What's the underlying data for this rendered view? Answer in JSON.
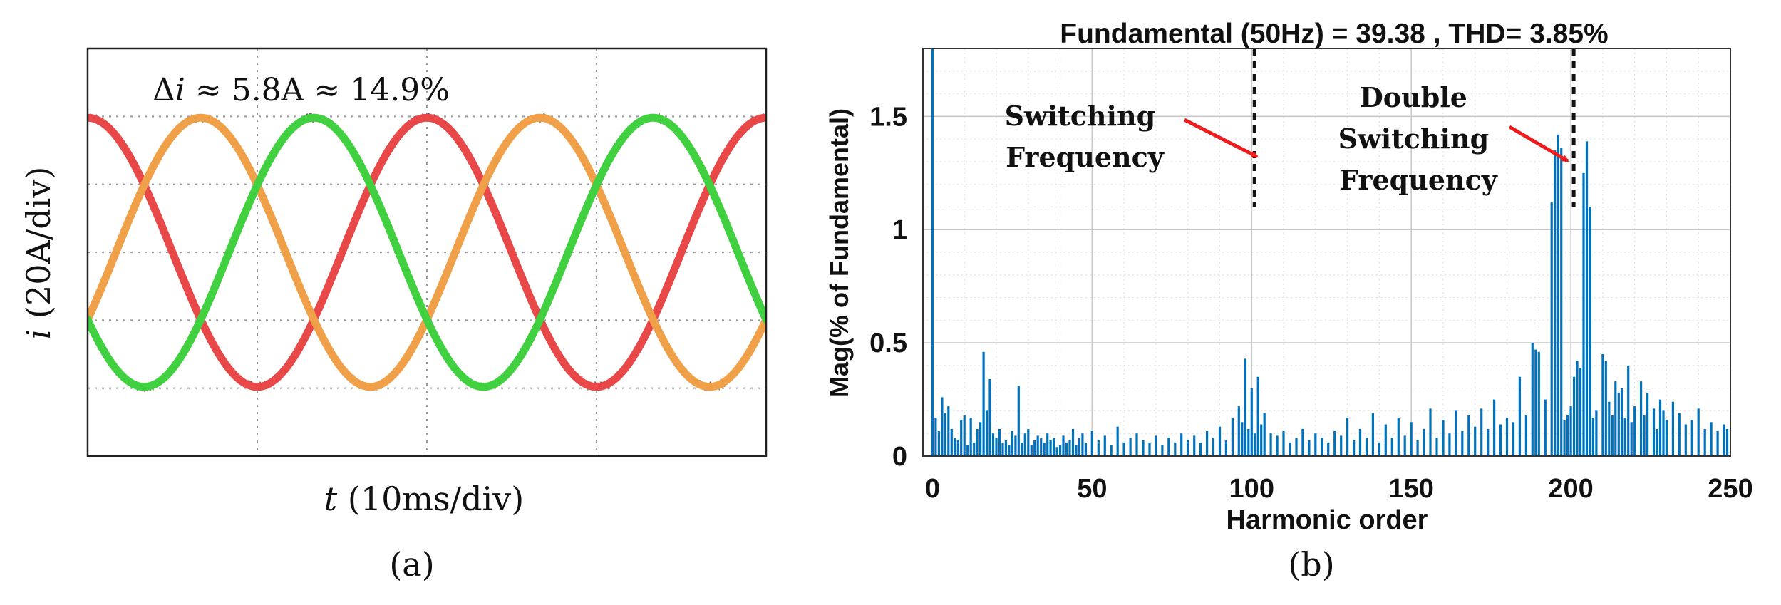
{
  "panel_a": {
    "delta_prefix": "Δ",
    "delta_var": "i",
    "delta_rest": " ≈ 5.8A ≈  14.9%",
    "ylabel_var": "i",
    "ylabel_unit": " (20A/div)",
    "xlabel_var": "t",
    "xlabel_unit": " (10ms/div)",
    "caption": "(a)",
    "colors": {
      "phase_red": "#e84848",
      "phase_orange": "#f0a048",
      "phase_green": "#40d040",
      "noise": "#3a1a10"
    }
  },
  "panel_b": {
    "title": "Fundamental (50Hz) = 39.38 , THD= 3.85%",
    "annotation_switching": [
      "Switching",
      "Frequency"
    ],
    "annotation_double": [
      "Double",
      "Switching",
      "Frequency"
    ],
    "caption": "(b)",
    "colors": {
      "bar": "#0072bd",
      "arrow": "#ee1c1c"
    }
  },
  "chart_data": [
    {
      "type": "line",
      "panel": "a",
      "series": [
        {
          "color": "#e84848",
          "amplitude_div": 2.0,
          "period_div": 2.0,
          "phase_deg": 90
        },
        {
          "color": "#f0a048",
          "amplitude_div": 2.0,
          "period_div": 2.0,
          "phase_deg": 330
        },
        {
          "color": "#40d040",
          "amplitude_div": 2.0,
          "period_div": 2.0,
          "phase_deg": 210
        }
      ],
      "ylabel": "i (20A/div)",
      "xlabel": "t (10ms/div)",
      "annotation": "Δi ≈ 5.8A ≈  14.9%",
      "grid": true
    },
    {
      "type": "bar",
      "panel": "b",
      "title": "Fundamental (50Hz) = 39.38 , THD= 3.85%",
      "xlabel": "Harmonic order",
      "ylabel": "Mag(% of Fundamental)",
      "xlim": [
        -3,
        250
      ],
      "ylim": [
        0,
        1.8
      ],
      "xticks": [
        0,
        50,
        100,
        150,
        200,
        250
      ],
      "yticks": [
        0,
        0.5,
        1,
        1.5
      ],
      "ytick_labels": [
        "0",
        "0.5",
        "1",
        "1.5"
      ],
      "grid": true,
      "vlines": [
        100,
        200
      ],
      "bars": [
        [
          0,
          1.8
        ],
        [
          1,
          0.17
        ],
        [
          2,
          0.11
        ],
        [
          3,
          0.26
        ],
        [
          4,
          0.19
        ],
        [
          5,
          0.22
        ],
        [
          6,
          0.12
        ],
        [
          7,
          0.08
        ],
        [
          8,
          0.07
        ],
        [
          9,
          0.16
        ],
        [
          10,
          0.18
        ],
        [
          11,
          0.05
        ],
        [
          12,
          0.17
        ],
        [
          13,
          0.06
        ],
        [
          14,
          0.12
        ],
        [
          15,
          0.15
        ],
        [
          16,
          0.46
        ],
        [
          17,
          0.2
        ],
        [
          18,
          0.34
        ],
        [
          19,
          0.1
        ],
        [
          20,
          0.08
        ],
        [
          21,
          0.12
        ],
        [
          22,
          0.06
        ],
        [
          23,
          0.07
        ],
        [
          24,
          0.05
        ],
        [
          25,
          0.11
        ],
        [
          26,
          0.09
        ],
        [
          27,
          0.31
        ],
        [
          28,
          0.06
        ],
        [
          29,
          0.1
        ],
        [
          30,
          0.12
        ],
        [
          31,
          0.05
        ],
        [
          32,
          0.07
        ],
        [
          33,
          0.09
        ],
        [
          34,
          0.08
        ],
        [
          35,
          0.06
        ],
        [
          36,
          0.1
        ],
        [
          37,
          0.07
        ],
        [
          38,
          0.08
        ],
        [
          39,
          0.04
        ],
        [
          40,
          0.05
        ],
        [
          41,
          0.09
        ],
        [
          42,
          0.06
        ],
        [
          43,
          0.07
        ],
        [
          44,
          0.12
        ],
        [
          45,
          0.05
        ],
        [
          46,
          0.08
        ],
        [
          47,
          0.1
        ],
        [
          48,
          0.06
        ],
        [
          50,
          0.11
        ],
        [
          52,
          0.07
        ],
        [
          54,
          0.09
        ],
        [
          56,
          0.05
        ],
        [
          58,
          0.13
        ],
        [
          60,
          0.06
        ],
        [
          62,
          0.08
        ],
        [
          64,
          0.1
        ],
        [
          66,
          0.07
        ],
        [
          68,
          0.06
        ],
        [
          70,
          0.09
        ],
        [
          72,
          0.05
        ],
        [
          74,
          0.08
        ],
        [
          76,
          0.06
        ],
        [
          78,
          0.1
        ],
        [
          80,
          0.07
        ],
        [
          82,
          0.09
        ],
        [
          84,
          0.06
        ],
        [
          86,
          0.11
        ],
        [
          88,
          0.08
        ],
        [
          90,
          0.13
        ],
        [
          92,
          0.07
        ],
        [
          94,
          0.17
        ],
        [
          96,
          0.22
        ],
        [
          97,
          0.15
        ],
        [
          98,
          0.43
        ],
        [
          99,
          0.12
        ],
        [
          100,
          0.3
        ],
        [
          101,
          0.1
        ],
        [
          102,
          0.35
        ],
        [
          103,
          0.14
        ],
        [
          104,
          0.19
        ],
        [
          106,
          0.1
        ],
        [
          108,
          0.09
        ],
        [
          110,
          0.11
        ],
        [
          112,
          0.06
        ],
        [
          114,
          0.08
        ],
        [
          116,
          0.12
        ],
        [
          118,
          0.07
        ],
        [
          120,
          0.1
        ],
        [
          122,
          0.08
        ],
        [
          124,
          0.06
        ],
        [
          126,
          0.11
        ],
        [
          128,
          0.09
        ],
        [
          130,
          0.17
        ],
        [
          132,
          0.07
        ],
        [
          134,
          0.12
        ],
        [
          136,
          0.08
        ],
        [
          138,
          0.19
        ],
        [
          140,
          0.06
        ],
        [
          142,
          0.14
        ],
        [
          144,
          0.08
        ],
        [
          146,
          0.17
        ],
        [
          148,
          0.09
        ],
        [
          150,
          0.15
        ],
        [
          152,
          0.07
        ],
        [
          154,
          0.12
        ],
        [
          156,
          0.21
        ],
        [
          158,
          0.08
        ],
        [
          160,
          0.16
        ],
        [
          162,
          0.1
        ],
        [
          164,
          0.2
        ],
        [
          166,
          0.11
        ],
        [
          168,
          0.18
        ],
        [
          170,
          0.13
        ],
        [
          172,
          0.21
        ],
        [
          174,
          0.12
        ],
        [
          176,
          0.25
        ],
        [
          178,
          0.14
        ],
        [
          180,
          0.17
        ],
        [
          182,
          0.15
        ],
        [
          184,
          0.35
        ],
        [
          186,
          0.18
        ],
        [
          188,
          0.5
        ],
        [
          189,
          0.47
        ],
        [
          190,
          0.46
        ],
        [
          192,
          0.25
        ],
        [
          194,
          1.12
        ],
        [
          195,
          1.35
        ],
        [
          196,
          1.42
        ],
        [
          197,
          1.36
        ],
        [
          198,
          0.16
        ],
        [
          199,
          0.18
        ],
        [
          200,
          0.22
        ],
        [
          201,
          0.35
        ],
        [
          202,
          0.42
        ],
        [
          203,
          0.39
        ],
        [
          204,
          1.25
        ],
        [
          205,
          1.39
        ],
        [
          206,
          1.1
        ],
        [
          207,
          0.17
        ],
        [
          208,
          0.2
        ],
        [
          210,
          0.45
        ],
        [
          211,
          0.42
        ],
        [
          212,
          0.24
        ],
        [
          213,
          0.18
        ],
        [
          214,
          0.33
        ],
        [
          215,
          0.28
        ],
        [
          216,
          0.3
        ],
        [
          217,
          0.17
        ],
        [
          218,
          0.4
        ],
        [
          219,
          0.15
        ],
        [
          220,
          0.22
        ],
        [
          222,
          0.33
        ],
        [
          223,
          0.18
        ],
        [
          224,
          0.28
        ],
        [
          226,
          0.21
        ],
        [
          227,
          0.12
        ],
        [
          228,
          0.25
        ],
        [
          229,
          0.2
        ],
        [
          230,
          0.16
        ],
        [
          232,
          0.24
        ],
        [
          234,
          0.19
        ],
        [
          236,
          0.14
        ],
        [
          238,
          0.16
        ],
        [
          240,
          0.21
        ],
        [
          242,
          0.12
        ],
        [
          244,
          0.15
        ],
        [
          246,
          0.11
        ],
        [
          248,
          0.14
        ],
        [
          249,
          0.12
        ]
      ]
    }
  ]
}
